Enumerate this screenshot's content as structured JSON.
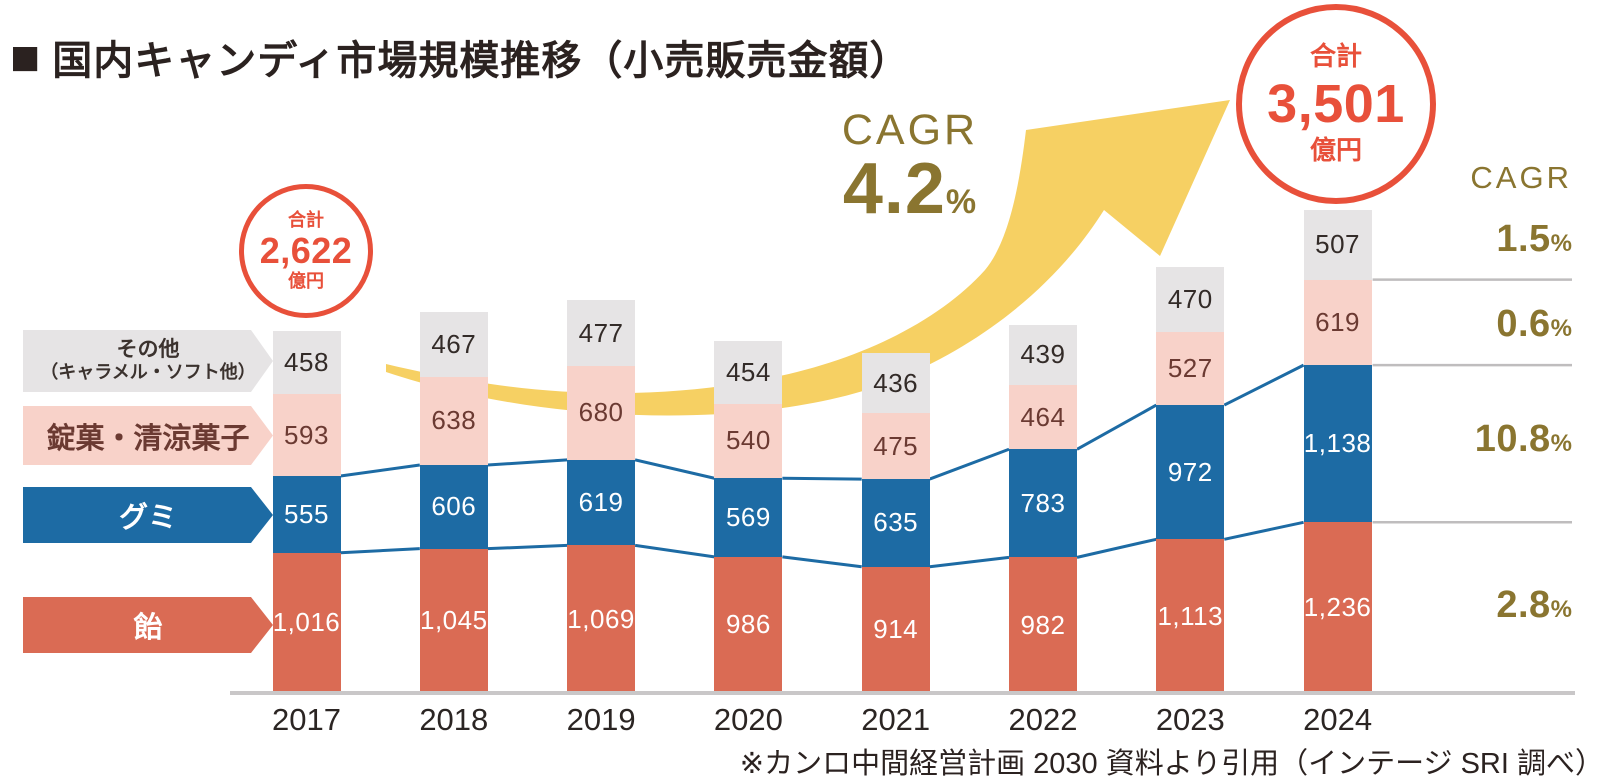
{
  "title": {
    "marker": "■",
    "text": "国内キャンディ市場規模推移（小売販売金額）"
  },
  "source_note": "※カンロ中間経営計画 2030 資料より引用（インテージ SRI 調べ）",
  "totals": {
    "start": {
      "heading": "合計",
      "value": "2,622",
      "unit": "億円",
      "year": "2017"
    },
    "end": {
      "heading": "合計",
      "value": "3,501",
      "unit": "億円",
      "year": "2024"
    }
  },
  "cagr_overall": {
    "label": "CAGR",
    "value": "4.2",
    "unit": "%"
  },
  "cagr_column": {
    "header": "CAGR",
    "items": [
      {
        "segment": "その他（キャラメル・ソフト他）",
        "value": "1.5",
        "unit": "%"
      },
      {
        "segment": "錠菓・清涼菓子",
        "value": "0.6",
        "unit": "%"
      },
      {
        "segment": "グミ",
        "value": "10.8",
        "unit": "%"
      },
      {
        "segment": "飴",
        "value": "2.8",
        "unit": "%"
      }
    ]
  },
  "legend": [
    {
      "label": "その他",
      "sublabel": "（キャラメル・ソフト他）",
      "color": "#E6E4E5",
      "text_color": "#3B322E"
    },
    {
      "label": "錠菓・清涼菓子",
      "color": "#F8D2C9",
      "text_color": "#6B3A32"
    },
    {
      "label": "グミ",
      "color": "#1D6BA4",
      "text_color": "#FFFFFF"
    },
    {
      "label": "飴",
      "color": "#DA6B54",
      "text_color": "#FFFFFF"
    }
  ],
  "chart_data": {
    "type": "bar",
    "stacked": true,
    "title": "国内キャンディ市場規模推移（小売販売金額）",
    "unit": "億円",
    "categories": [
      "2017",
      "2018",
      "2019",
      "2020",
      "2021",
      "2022",
      "2023",
      "2024"
    ],
    "series": [
      {
        "name": "飴",
        "color": "#DA6B54",
        "label_color": "#FFFFFF",
        "values": [
          1016,
          1045,
          1069,
          986,
          914,
          982,
          1113,
          1236
        ]
      },
      {
        "name": "グミ",
        "color": "#1D6BA4",
        "label_color": "#FFFFFF",
        "values": [
          555,
          606,
          619,
          569,
          635,
          783,
          972,
          1138
        ]
      },
      {
        "name": "錠菓・清涼菓子",
        "color": "#F8D2C9",
        "label_color": "#6B3A32",
        "values": [
          593,
          638,
          680,
          540,
          475,
          464,
          527,
          619
        ]
      },
      {
        "name": "その他（キャラメル・ソフト他）",
        "color": "#E6E4E5",
        "label_color": "#332B28",
        "values": [
          458,
          467,
          477,
          454,
          436,
          439,
          470,
          507
        ]
      }
    ],
    "connector_series": "グミ",
    "legend_position": "left",
    "grid": false,
    "xlabel": "",
    "ylabel": ""
  },
  "colors": {
    "accent_red": "#E8503A",
    "arrow_yellow": "#F6D063",
    "cagr_olive": "#8A7530",
    "axis_gray": "#C9C7C8",
    "divider_gray": "#BFBDBE",
    "connector_blue": "#1D6BA4",
    "text_dark": "#2B2220"
  }
}
